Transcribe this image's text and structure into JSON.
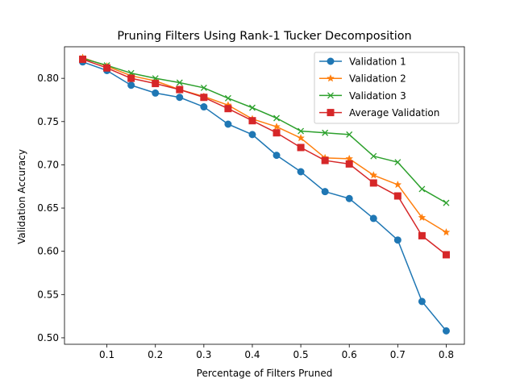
{
  "chart_data": {
    "type": "line",
    "title": "Pruning Filters Using Rank-1 Tucker Decomposition",
    "xlabel": "Percentage of Filters Pruned",
    "ylabel": "Validation Accuracy",
    "xlim": [
      0.0125,
      0.8375
    ],
    "ylim": [
      0.4925,
      0.8365
    ],
    "xticks": [
      0.1,
      0.2,
      0.3,
      0.4,
      0.5,
      0.6,
      0.7,
      0.8
    ],
    "xtick_labels": [
      "0.1",
      "0.2",
      "0.3",
      "0.4",
      "0.5",
      "0.6",
      "0.7",
      "0.8"
    ],
    "yticks": [
      0.5,
      0.55,
      0.6,
      0.65,
      0.7,
      0.75,
      0.8
    ],
    "ytick_labels": [
      "0.50",
      "0.55",
      "0.60",
      "0.65",
      "0.70",
      "0.75",
      "0.80"
    ],
    "grid": false,
    "legend_position": "upper right",
    "x": [
      0.05,
      0.1,
      0.15,
      0.2,
      0.25,
      0.3,
      0.35,
      0.4,
      0.45,
      0.5,
      0.55,
      0.6,
      0.65,
      0.7,
      0.75,
      0.8
    ],
    "series": [
      {
        "name": "Validation 1",
        "color": "#1f77b4",
        "marker": "circle",
        "values": [
          0.819,
          0.809,
          0.792,
          0.783,
          0.778,
          0.767,
          0.747,
          0.735,
          0.711,
          0.692,
          0.669,
          0.661,
          0.638,
          0.613,
          0.542,
          0.508
        ]
      },
      {
        "name": "Validation 2",
        "color": "#ff7f0e",
        "marker": "star",
        "values": [
          0.824,
          0.814,
          0.803,
          0.797,
          0.787,
          0.779,
          0.769,
          0.753,
          0.744,
          0.731,
          0.708,
          0.707,
          0.688,
          0.677,
          0.639,
          0.622
        ]
      },
      {
        "name": "Validation 3",
        "color": "#2ca02c",
        "marker": "x",
        "values": [
          0.823,
          0.815,
          0.806,
          0.8,
          0.795,
          0.789,
          0.777,
          0.766,
          0.754,
          0.739,
          0.737,
          0.735,
          0.71,
          0.703,
          0.672,
          0.656
        ]
      },
      {
        "name": "Average Validation",
        "color": "#d62728",
        "marker": "square",
        "values": [
          0.822,
          0.812,
          0.8,
          0.794,
          0.787,
          0.778,
          0.765,
          0.751,
          0.737,
          0.72,
          0.705,
          0.701,
          0.679,
          0.664,
          0.618,
          0.596
        ]
      }
    ]
  }
}
